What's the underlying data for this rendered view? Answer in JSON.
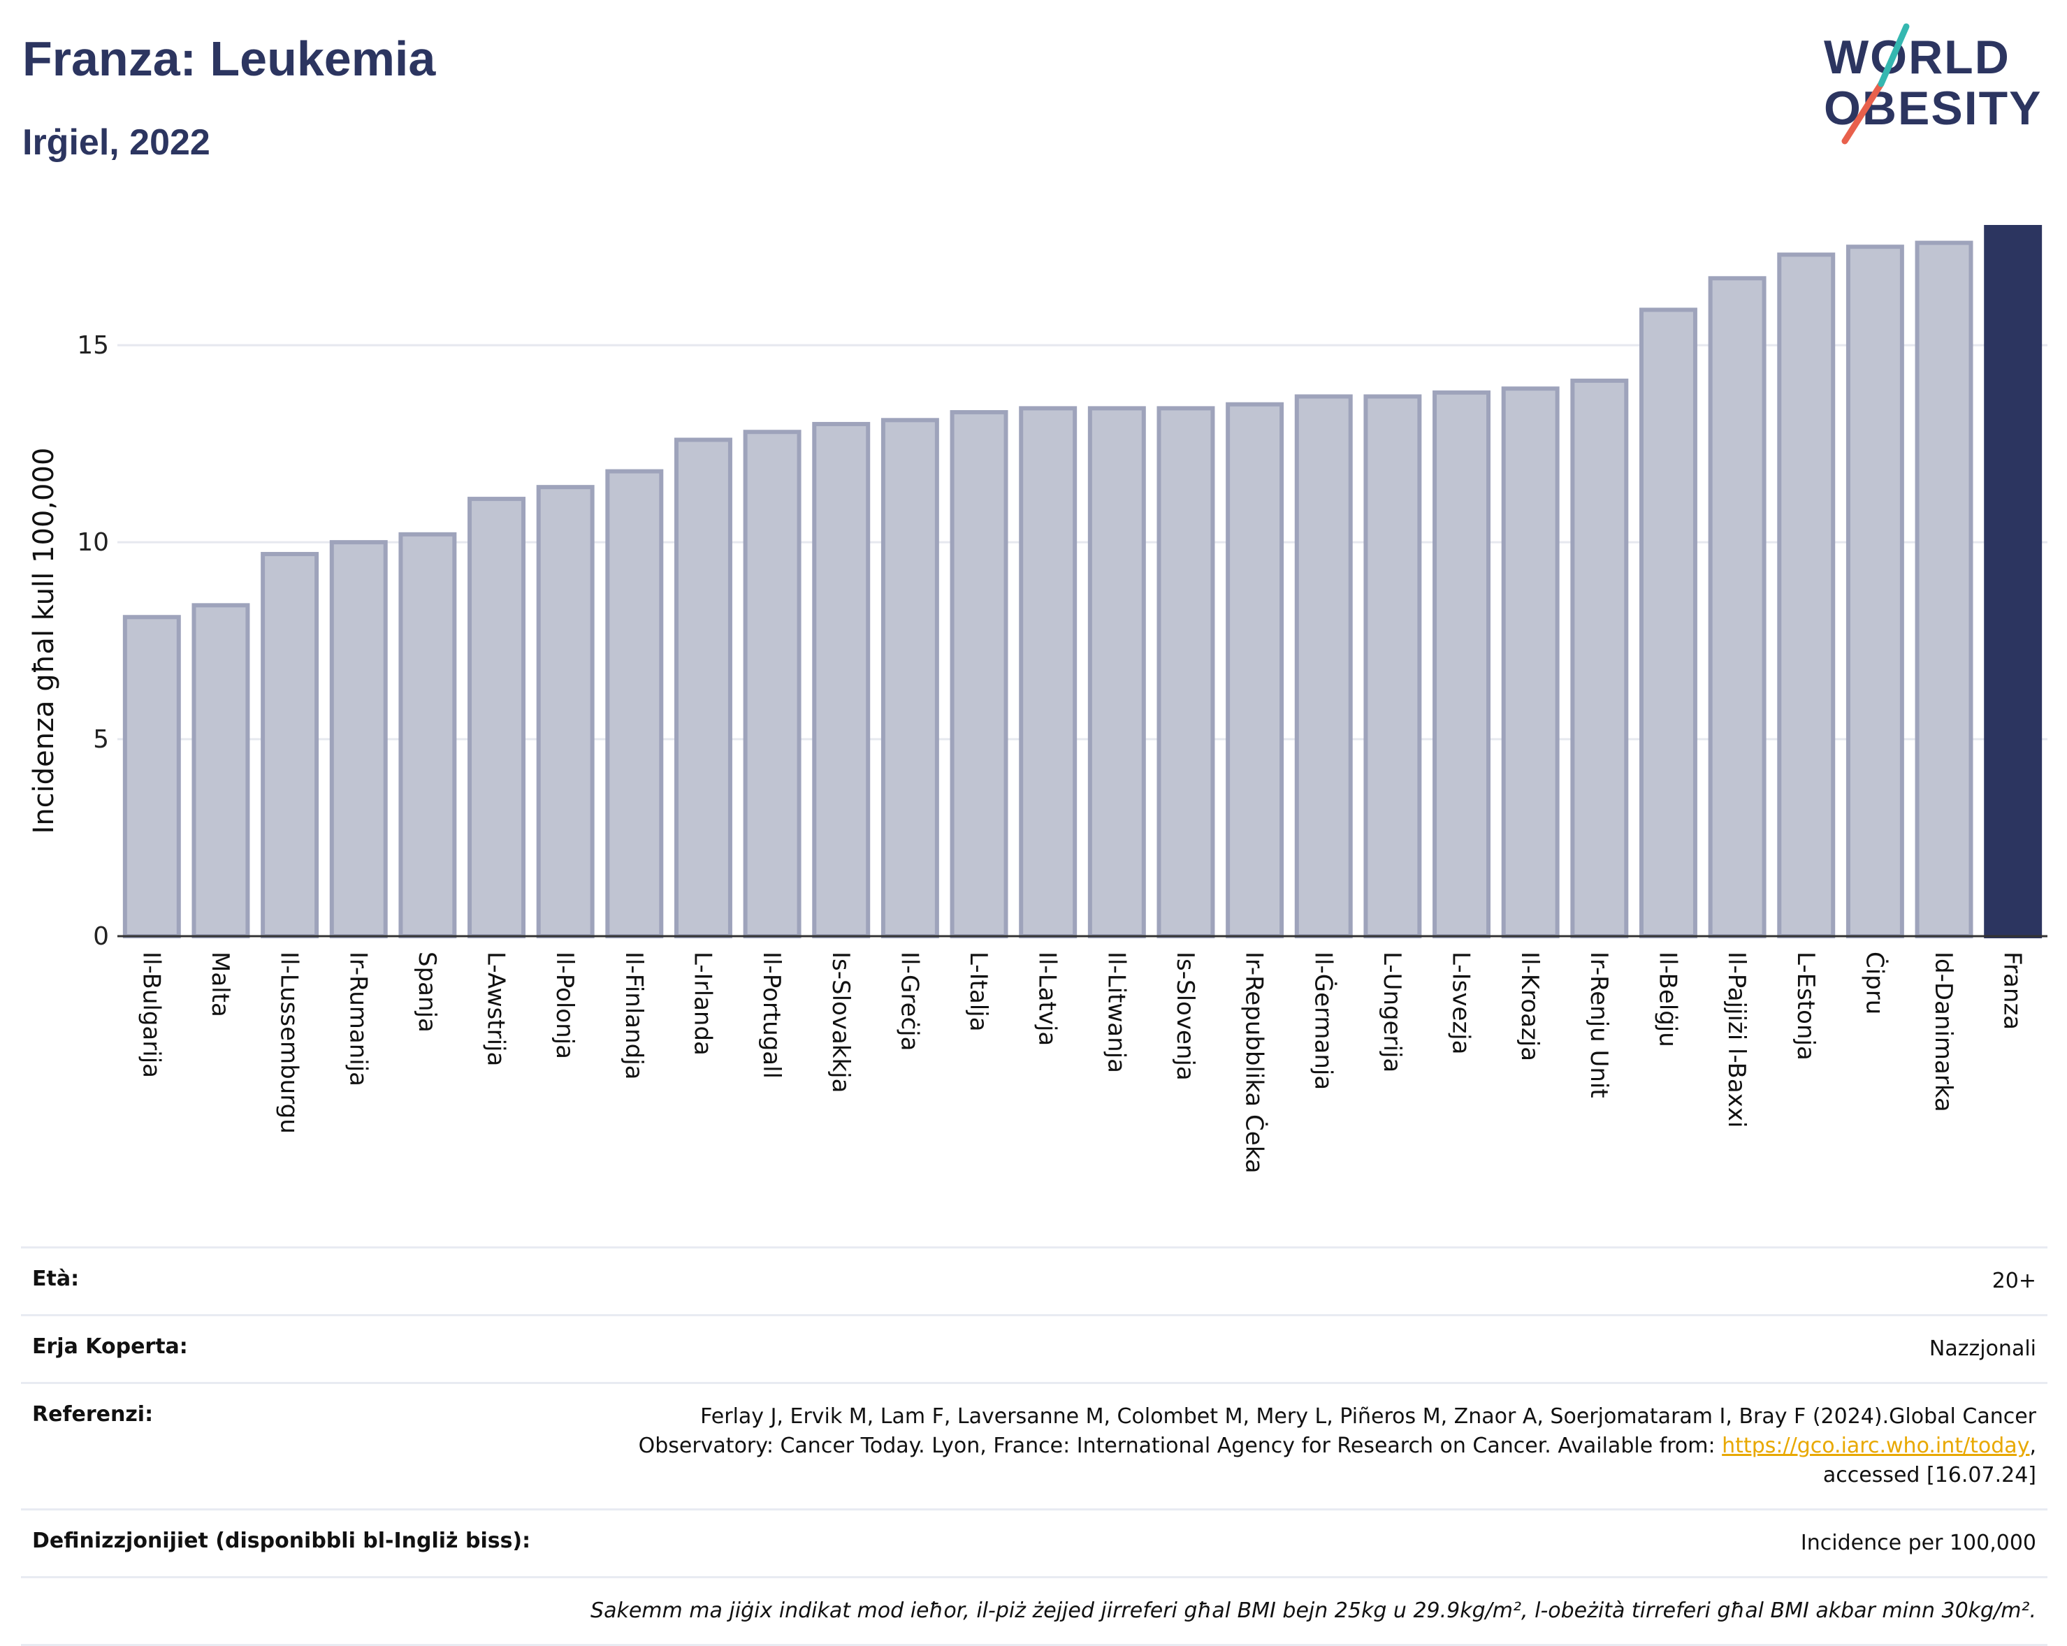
{
  "header": {
    "title": "Franza: Leukemia",
    "subtitle": "Irġiel, 2022",
    "logo_text_line1": "WORLD",
    "logo_text_line2": "OBESITY"
  },
  "colors": {
    "highlight": "#2c3560",
    "bar_fill": "#c0c4d2",
    "bar_stroke": "#9ea3bb",
    "grid": "#e6e8ef",
    "logo_red": "#e8604c",
    "logo_teal": "#35b7b0"
  },
  "chart_data": {
    "type": "bar",
    "title": "Franza: Leukemia",
    "subtitle": "Irġiel, 2022",
    "ylabel": "Incidenza għal kull 100,000",
    "xlabel": "",
    "ylim": [
      0,
      18
    ],
    "yticks": [
      0,
      5,
      10,
      15
    ],
    "grid": true,
    "highlight": "Franza",
    "categories": [
      "Il-Bulgarija",
      "Malta",
      "Il-Lussemburgu",
      "Ir-Rumanija",
      "Spanja",
      "L-Awstrija",
      "Il-Polonja",
      "Il-Finlandja",
      "L-Irlanda",
      "Il-Portugall",
      "Is-Slovakkja",
      "Il-Greċja",
      "L-Italja",
      "Il-Latvja",
      "Il-Litwanja",
      "Is-Slovenja",
      "Ir-Repubblika Ċeka",
      "Il-Ġermanja",
      "L-Ungerija",
      "L-Isvezja",
      "Il-Kroazja",
      "Ir-Renju Unit",
      "Il-Belġju",
      "Il-Pajjiżi l-Baxxi",
      "L-Estonja",
      "Ċipru",
      "Id-Danimarka",
      "Franza"
    ],
    "values": [
      8.1,
      8.4,
      9.7,
      10.0,
      10.2,
      11.1,
      11.4,
      11.8,
      12.6,
      12.8,
      13.0,
      13.1,
      13.3,
      13.4,
      13.4,
      13.4,
      13.5,
      13.7,
      13.7,
      13.8,
      13.9,
      14.1,
      15.9,
      16.7,
      17.3,
      17.5,
      17.6,
      18.0
    ]
  },
  "info": {
    "age_label": "Età:",
    "age_value": "20+",
    "area_label": "Erja Koperta:",
    "area_value": "Nazzjonali",
    "ref_label": "Referenzi:",
    "ref_text_1": "Ferlay J, Ervik M, Lam F, Laversanne M, Colombet M, Mery L, Piñeros M, Znaor A, Soerjomataram I, Bray F (2024).Global Cancer Observatory: Cancer Today. Lyon, France: International Agency for Research on Cancer. Available from: ",
    "ref_link": "https://gco.iarc.who.int/today",
    "ref_text_2": ", accessed [16.07.24]",
    "def_label": "Definizzjonijiet (disponibbli bl-Ingliż biss):",
    "def_value": "Incidence per 100,000",
    "note": "Sakemm ma jiġix indikat mod ieħor, il-piż żejjed jirreferi għal BMI bejn 25kg u 29.9kg/m², l-obeżità tirreferi għal BMI akbar minn 30kg/m²."
  }
}
